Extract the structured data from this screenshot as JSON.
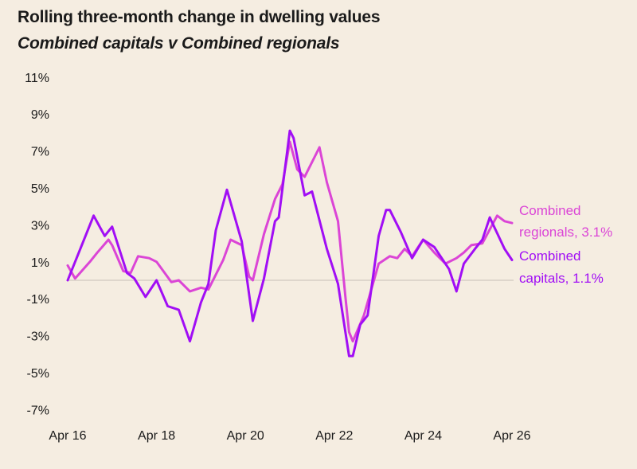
{
  "chart_data": {
    "type": "line",
    "title": "Rolling three-month change in dwelling values",
    "subtitle": "Combined capitals v Combined regionals",
    "xlabel": "",
    "ylabel": "",
    "ylim": [
      -7,
      11
    ],
    "y_ticks": [
      "11%",
      "9%",
      "7%",
      "5%",
      "3%",
      "1%",
      "-1%",
      "-3%",
      "-5%",
      "-7%"
    ],
    "y_tick_values": [
      11,
      9,
      7,
      5,
      3,
      1,
      -1,
      -3,
      -5,
      -7
    ],
    "x_ticks": [
      "Apr 16",
      "Apr 18",
      "Apr 20",
      "Apr 22",
      "Apr 24",
      "Apr 26"
    ],
    "x_tick_dates": [
      "2016-04",
      "2018-04",
      "2020-04",
      "2022-04",
      "2024-04",
      "2026-04"
    ],
    "grid": false,
    "zero_line": true,
    "legend": "inline-right",
    "series": [
      {
        "name": "Combined regionals, 3.1%",
        "label_lines": [
          "Combined",
          "regionals, 3.1%"
        ],
        "color": "#db45d6",
        "points": [
          [
            "2016-04",
            0.8
          ],
          [
            "2016-06",
            0.1
          ],
          [
            "2016-10",
            1.0
          ],
          [
            "2016-12",
            1.5
          ],
          [
            "2017-03",
            2.2
          ],
          [
            "2017-04",
            1.9
          ],
          [
            "2017-07",
            0.5
          ],
          [
            "2017-09",
            0.4
          ],
          [
            "2017-11",
            1.3
          ],
          [
            "2018-02",
            1.2
          ],
          [
            "2018-04",
            1.0
          ],
          [
            "2018-08",
            -0.1
          ],
          [
            "2018-10",
            0.0
          ],
          [
            "2019-01",
            -0.6
          ],
          [
            "2019-04",
            -0.4
          ],
          [
            "2019-06",
            -0.5
          ],
          [
            "2019-10",
            1.1
          ],
          [
            "2019-12",
            2.2
          ],
          [
            "2020-03",
            1.9
          ],
          [
            "2020-05",
            0.2
          ],
          [
            "2020-06",
            0.0
          ],
          [
            "2020-09",
            2.5
          ],
          [
            "2020-12",
            4.4
          ],
          [
            "2021-02",
            5.2
          ],
          [
            "2021-04",
            7.5
          ],
          [
            "2021-06",
            6.0
          ],
          [
            "2021-08",
            5.6
          ],
          [
            "2021-12",
            7.2
          ],
          [
            "2022-02",
            5.3
          ],
          [
            "2022-05",
            3.2
          ],
          [
            "2022-07",
            -0.9
          ],
          [
            "2022-08",
            -2.8
          ],
          [
            "2022-09",
            -3.3
          ],
          [
            "2022-12",
            -1.9
          ],
          [
            "2023-04",
            0.9
          ],
          [
            "2023-07",
            1.3
          ],
          [
            "2023-09",
            1.2
          ],
          [
            "2023-11",
            1.7
          ],
          [
            "2024-01",
            1.3
          ],
          [
            "2024-04",
            2.2
          ],
          [
            "2024-07",
            1.5
          ],
          [
            "2024-10",
            0.9
          ],
          [
            "2025-01",
            1.2
          ],
          [
            "2025-03",
            1.5
          ],
          [
            "2025-05",
            1.9
          ],
          [
            "2025-08",
            2.0
          ],
          [
            "2025-12",
            3.5
          ],
          [
            "2026-02",
            3.2
          ],
          [
            "2026-04",
            3.1
          ]
        ]
      },
      {
        "name": "Combined capitals, 1.1%",
        "label_lines": [
          "Combined",
          "capitals, 1.1%"
        ],
        "color": "#a10ef5",
        "points": [
          [
            "2016-04",
            0.0
          ],
          [
            "2016-07",
            1.5
          ],
          [
            "2016-11",
            3.5
          ],
          [
            "2017-02",
            2.4
          ],
          [
            "2017-04",
            2.9
          ],
          [
            "2017-08",
            0.4
          ],
          [
            "2017-10",
            0.1
          ],
          [
            "2018-01",
            -0.9
          ],
          [
            "2018-04",
            0.0
          ],
          [
            "2018-07",
            -1.4
          ],
          [
            "2018-10",
            -1.6
          ],
          [
            "2019-01",
            -3.3
          ],
          [
            "2019-04",
            -1.2
          ],
          [
            "2019-06",
            -0.2
          ],
          [
            "2019-08",
            2.7
          ],
          [
            "2019-11",
            4.9
          ],
          [
            "2020-03",
            2.1
          ],
          [
            "2020-06",
            -2.2
          ],
          [
            "2020-09",
            0.1
          ],
          [
            "2020-12",
            3.2
          ],
          [
            "2021-01",
            3.4
          ],
          [
            "2021-04",
            8.1
          ],
          [
            "2021-05",
            7.7
          ],
          [
            "2021-08",
            4.6
          ],
          [
            "2021-10",
            4.8
          ],
          [
            "2022-02",
            1.7
          ],
          [
            "2022-05",
            -0.2
          ],
          [
            "2022-08",
            -4.1
          ],
          [
            "2022-09",
            -4.1
          ],
          [
            "2022-11",
            -2.4
          ],
          [
            "2023-01",
            -1.9
          ],
          [
            "2023-04",
            2.4
          ],
          [
            "2023-06",
            3.8
          ],
          [
            "2023-07",
            3.8
          ],
          [
            "2023-10",
            2.6
          ],
          [
            "2024-01",
            1.2
          ],
          [
            "2024-04",
            2.2
          ],
          [
            "2024-07",
            1.8
          ],
          [
            "2024-11",
            0.6
          ],
          [
            "2025-01",
            -0.6
          ],
          [
            "2025-03",
            0.9
          ],
          [
            "2025-06",
            1.7
          ],
          [
            "2025-08",
            2.2
          ],
          [
            "2025-10",
            3.4
          ],
          [
            "2026-02",
            1.7
          ],
          [
            "2026-04",
            1.1
          ]
        ]
      }
    ]
  }
}
